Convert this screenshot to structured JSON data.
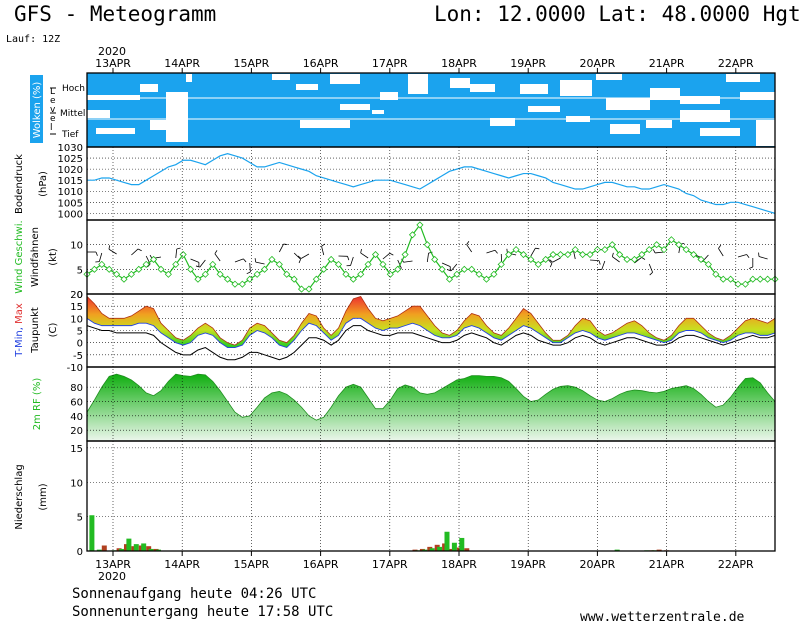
{
  "header": {
    "title": "GFS - Meteogramm",
    "coords": "Lon: 12.0000 Lat: 48.0000 Hgt: 5",
    "run": "Lauf: 12Z",
    "year": "2020"
  },
  "footer": {
    "sunrise": "Sonnenaufgang heute 04:26 UTC",
    "sunset": "Sonnenuntergang heute 17:58 UTC",
    "site": "www.wetterzentrale.de"
  },
  "colors": {
    "cloud": "#1ba3ee",
    "pressure": "#1ba3ee",
    "wind": "#22bb22",
    "tmax": "#e03030",
    "tmin": "#2040e0",
    "dew": "#000000",
    "rh": "#22bb22",
    "precip_conv": "#22bb22",
    "precip_strat": "#b04020"
  },
  "chart_data": {
    "type": "line",
    "dates": [
      "13APR",
      "14APR",
      "15APR",
      "16APR",
      "17APR",
      "18APR",
      "19APR",
      "20APR",
      "21APR",
      "22APR"
    ],
    "steps_per_day": 8,
    "panels": {
      "clouds": {
        "ylabel": "Wolken (%)",
        "level_label": "Level",
        "levels": [
          "Hoch",
          "Mittel",
          "Tief"
        ]
      },
      "pressure": {
        "ylabel1": "Bodendruck",
        "ylabel2": "(hPa)",
        "ylim": [
          997,
          1030
        ],
        "ticks": [
          1000,
          1005,
          1010,
          1015,
          1020,
          1025,
          1030
        ],
        "values": [
          1015,
          1015,
          1016,
          1016,
          1015,
          1014,
          1013,
          1013,
          1015,
          1017,
          1019,
          1021,
          1022,
          1024,
          1024,
          1023,
          1022,
          1024,
          1026,
          1027,
          1026,
          1025,
          1023,
          1021,
          1021,
          1022,
          1023,
          1022,
          1021,
          1020,
          1019,
          1017,
          1016,
          1015,
          1014,
          1013,
          1012,
          1013,
          1014,
          1015,
          1015,
          1015,
          1014,
          1013,
          1012,
          1011,
          1013,
          1015,
          1017,
          1019,
          1020,
          1021,
          1021,
          1020,
          1019,
          1018,
          1017,
          1016,
          1017,
          1018,
          1018,
          1017,
          1016,
          1014,
          1013,
          1012,
          1011,
          1011,
          1012,
          1013,
          1014,
          1014,
          1013,
          1012,
          1012,
          1011,
          1011,
          1012,
          1013,
          1012,
          1011,
          1009,
          1008,
          1006,
          1005,
          1004,
          1004,
          1005,
          1005,
          1004,
          1003,
          1002,
          1001,
          1000
        ]
      },
      "wind": {
        "ylabel1": "Wind Geschwi.",
        "ylabel2": "Windfahnen",
        "ylabel3": "(kt)",
        "ylim": [
          0,
          15
        ],
        "ticks": [
          0,
          5,
          10
        ],
        "values": [
          4,
          5,
          6,
          5,
          4,
          3,
          4,
          5,
          6,
          7,
          5,
          4,
          6,
          8,
          5,
          3,
          4,
          6,
          4,
          3,
          2,
          2,
          3,
          4,
          5,
          7,
          6,
          4,
          3,
          1,
          1,
          3,
          5,
          7,
          6,
          4,
          3,
          4,
          6,
          8,
          6,
          4,
          5,
          8,
          12,
          14,
          10,
          7,
          5,
          3,
          4,
          5,
          5,
          4,
          3,
          4,
          6,
          8,
          9,
          8,
          7,
          6,
          7,
          8,
          8,
          8,
          9,
          8,
          8,
          9,
          9,
          10,
          8,
          7,
          7,
          8,
          9,
          10,
          9,
          11,
          10,
          9,
          8,
          7,
          6,
          4,
          3,
          3,
          2,
          2,
          3,
          3,
          3,
          3
        ]
      },
      "temperature": {
        "ylabel1": "T-Min, Max",
        "ylabel2": "Taupunkt",
        "ylabel3": "(C)",
        "ylim": [
          -10,
          20
        ],
        "ticks": [
          -10,
          -5,
          0,
          5,
          10,
          15,
          20
        ],
        "tmax": [
          19,
          16,
          12,
          10,
          10,
          10,
          11,
          13,
          15,
          14,
          8,
          5,
          2,
          1,
          3,
          6,
          8,
          6,
          2,
          0,
          -1,
          1,
          6,
          8,
          7,
          4,
          1,
          0,
          3,
          8,
          12,
          11,
          6,
          3,
          6,
          13,
          18,
          19,
          14,
          10,
          9,
          10,
          11,
          13,
          15,
          15,
          11,
          7,
          4,
          3,
          5,
          9,
          12,
          11,
          7,
          4,
          3,
          6,
          10,
          14,
          12,
          8,
          4,
          1,
          1,
          3,
          7,
          10,
          9,
          5,
          3,
          4,
          6,
          8,
          9,
          7,
          4,
          2,
          1,
          3,
          7,
          10,
          10,
          7,
          4,
          2,
          1,
          3,
          6,
          9,
          10,
          9,
          8,
          10
        ],
        "tmin": [
          10,
          8,
          7,
          7,
          7,
          7,
          7,
          8,
          8,
          7,
          4,
          2,
          0,
          -1,
          0,
          3,
          4,
          3,
          0,
          -2,
          -2,
          -1,
          3,
          5,
          4,
          2,
          -1,
          -2,
          1,
          5,
          8,
          7,
          4,
          1,
          3,
          8,
          10,
          10,
          8,
          6,
          5,
          6,
          6,
          7,
          8,
          7,
          5,
          3,
          2,
          2,
          3,
          6,
          7,
          6,
          4,
          2,
          1,
          3,
          5,
          7,
          6,
          4,
          2,
          0,
          0,
          2,
          4,
          5,
          4,
          2,
          1,
          2,
          3,
          4,
          4,
          3,
          2,
          1,
          0,
          1,
          4,
          5,
          5,
          4,
          2,
          1,
          0,
          1,
          3,
          4,
          4,
          3,
          3,
          4
        ],
        "dew": [
          7,
          6,
          5,
          5,
          4,
          4,
          4,
          4,
          4,
          3,
          0,
          -2,
          -4,
          -5,
          -5,
          -3,
          -2,
          -4,
          -6,
          -7,
          -7,
          -6,
          -4,
          -4,
          -5,
          -6,
          -7,
          -6,
          -4,
          -1,
          2,
          2,
          1,
          -1,
          1,
          5,
          7,
          7,
          5,
          4,
          3,
          3,
          4,
          4,
          4,
          3,
          2,
          1,
          0,
          0,
          1,
          3,
          4,
          3,
          2,
          0,
          -1,
          1,
          3,
          4,
          3,
          1,
          0,
          -1,
          -1,
          0,
          2,
          3,
          2,
          0,
          -1,
          0,
          1,
          2,
          2,
          1,
          0,
          -1,
          -1,
          0,
          2,
          3,
          3,
          2,
          1,
          0,
          -1,
          0,
          1,
          2,
          3,
          2,
          2,
          3
        ]
      },
      "humidity": {
        "ylabel": "2m RF (%)",
        "ylim": [
          5,
          108
        ],
        "ticks": [
          20,
          40,
          60,
          80
        ],
        "values": [
          45,
          62,
          80,
          95,
          98,
          95,
          90,
          82,
          72,
          68,
          75,
          88,
          98,
          96,
          95,
          98,
          97,
          88,
          75,
          60,
          45,
          38,
          40,
          52,
          65,
          72,
          74,
          70,
          62,
          52,
          40,
          34,
          38,
          52,
          68,
          80,
          84,
          80,
          65,
          50,
          50,
          62,
          78,
          83,
          80,
          72,
          70,
          72,
          78,
          84,
          90,
          92,
          96,
          96,
          95,
          95,
          93,
          88,
          78,
          67,
          60,
          62,
          70,
          77,
          81,
          82,
          80,
          75,
          68,
          62,
          60,
          64,
          70,
          74,
          76,
          75,
          73,
          72,
          74,
          78,
          80,
          82,
          78,
          70,
          60,
          52,
          55,
          66,
          80,
          92,
          93,
          86,
          72,
          60
        ]
      },
      "precipitation": {
        "ylabel1": "Niederschlag",
        "ylabel2": "(mm)",
        "ylim": [
          0,
          16
        ],
        "ticks": [
          0,
          5,
          10,
          15
        ],
        "bars": [
          {
            "t": 1,
            "conv": 5.2,
            "strat": 0
          },
          {
            "t": 2,
            "conv": 0.2,
            "strat": 0.8
          },
          {
            "t": 4,
            "conv": 0.1,
            "strat": 0.4
          },
          {
            "t": 5,
            "conv": 0.3,
            "strat": 1.0
          },
          {
            "t": 6,
            "conv": 1.8,
            "strat": 0.7
          },
          {
            "t": 7,
            "conv": 1.0,
            "strat": 0.8
          },
          {
            "t": 8,
            "conv": 1.1,
            "strat": 0.7
          },
          {
            "t": 9,
            "conv": 0.3,
            "strat": 0.3
          },
          {
            "t": 10,
            "conv": 0.2,
            "strat": 0
          },
          {
            "t": 44,
            "conv": 0,
            "strat": 0.2
          },
          {
            "t": 45,
            "conv": 0.1,
            "strat": 0.3
          },
          {
            "t": 46,
            "conv": 0.2,
            "strat": 0.6
          },
          {
            "t": 47,
            "conv": 0.4,
            "strat": 0.9
          },
          {
            "t": 48,
            "conv": 0.6,
            "strat": 1.1
          },
          {
            "t": 49,
            "conv": 2.8,
            "strat": 0.3
          },
          {
            "t": 50,
            "conv": 1.2,
            "strat": 0.5
          },
          {
            "t": 51,
            "conv": 1.9,
            "strat": 0.4
          },
          {
            "t": 72,
            "conv": 0.2,
            "strat": 0
          },
          {
            "t": 76,
            "conv": 0.1,
            "strat": 0.1
          },
          {
            "t": 77,
            "conv": 0.1,
            "strat": 0.2
          },
          {
            "t": 78,
            "conv": 0,
            "strat": 0.1
          }
        ]
      }
    }
  }
}
